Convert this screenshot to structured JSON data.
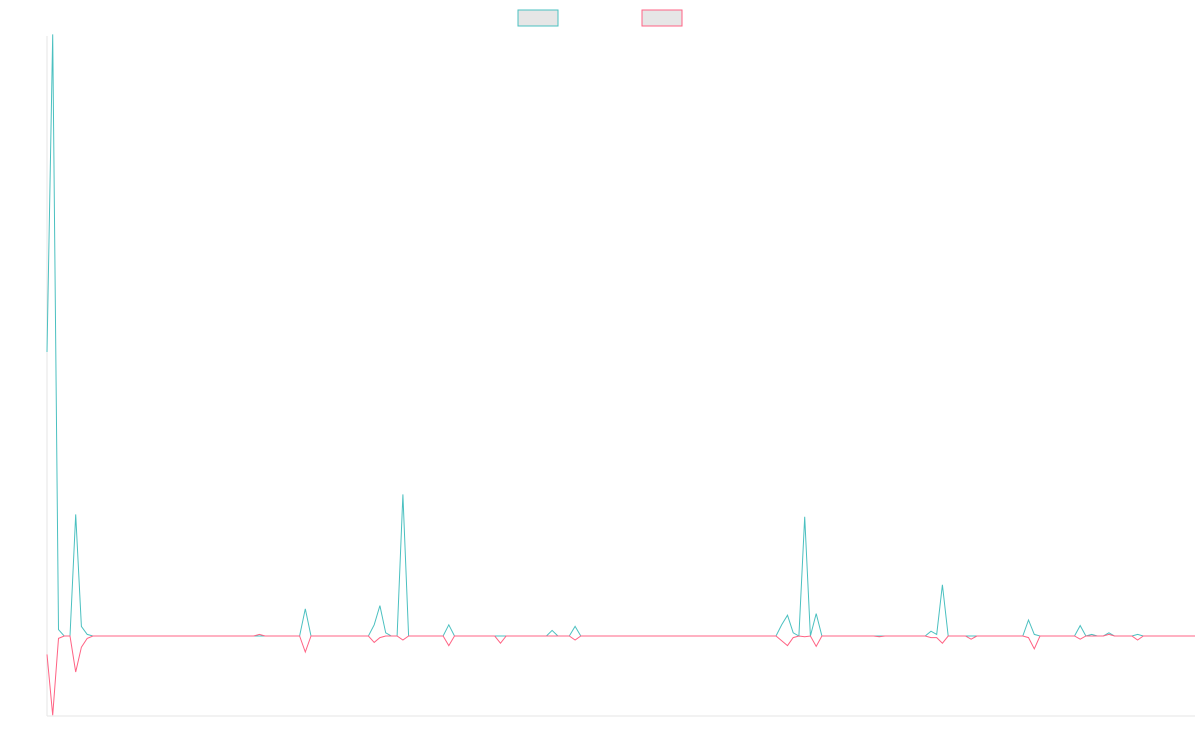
{
  "chart_data": {
    "type": "line",
    "title": "",
    "xlabel": "",
    "ylabel": "",
    "legend": {
      "placement": "top-center",
      "entries": [
        {
          "name": "",
          "color": "#4bc0c0",
          "fill": "#e6e6e6"
        },
        {
          "name": "",
          "color": "#ff6384",
          "fill": "#e6e6e6"
        }
      ]
    },
    "x_range": [
      0,
      200
    ],
    "y_range": [
      -100,
      750
    ],
    "grid": false,
    "series": [
      {
        "name": "",
        "color": "#4bc0c0",
        "points": [
          [
            0,
            355
          ],
          [
            1,
            752
          ],
          [
            2,
            8
          ],
          [
            3,
            0
          ],
          [
            4,
            0
          ],
          [
            5,
            152
          ],
          [
            6,
            12
          ],
          [
            7,
            2
          ],
          [
            8,
            0
          ],
          [
            36,
            0
          ],
          [
            37,
            0
          ],
          [
            38,
            0
          ],
          [
            44,
            0
          ],
          [
            45,
            34
          ],
          [
            46,
            0
          ],
          [
            56,
            0
          ],
          [
            57,
            14
          ],
          [
            58,
            38
          ],
          [
            59,
            4
          ],
          [
            60,
            0
          ],
          [
            61,
            0
          ],
          [
            62,
            177
          ],
          [
            63,
            0
          ],
          [
            69,
            0
          ],
          [
            70,
            14
          ],
          [
            71,
            0
          ],
          [
            78,
            0
          ],
          [
            79,
            0
          ],
          [
            80,
            0
          ],
          [
            87,
            0
          ],
          [
            88,
            7
          ],
          [
            89,
            0
          ],
          [
            91,
            0
          ],
          [
            92,
            12
          ],
          [
            93,
            0
          ],
          [
            127,
            0
          ],
          [
            128,
            14
          ],
          [
            129,
            26
          ],
          [
            130,
            4
          ],
          [
            131,
            0
          ],
          [
            132,
            149
          ],
          [
            133,
            0
          ],
          [
            134,
            28
          ],
          [
            135,
            0
          ],
          [
            144,
            0
          ],
          [
            145,
            0
          ],
          [
            146,
            0
          ],
          [
            153,
            0
          ],
          [
            154,
            6
          ],
          [
            155,
            2
          ],
          [
            156,
            64
          ],
          [
            157,
            0
          ],
          [
            160,
            0
          ],
          [
            161,
            0
          ],
          [
            162,
            0
          ],
          [
            166,
            0
          ],
          [
            167,
            0
          ],
          [
            168,
            0
          ],
          [
            170,
            0
          ],
          [
            171,
            20
          ],
          [
            172,
            2
          ],
          [
            173,
            0
          ],
          [
            179,
            0
          ],
          [
            180,
            13
          ],
          [
            181,
            0
          ],
          [
            182,
            2
          ],
          [
            183,
            0
          ],
          [
            184,
            0
          ],
          [
            185,
            4
          ],
          [
            186,
            0
          ],
          [
            189,
            0
          ],
          [
            190,
            2
          ],
          [
            191,
            0
          ],
          [
            192,
            0
          ],
          [
            193,
            0
          ],
          [
            200,
            0
          ]
        ]
      },
      {
        "name": "",
        "color": "#ff6384",
        "points": [
          [
            0,
            -23
          ],
          [
            1,
            -99
          ],
          [
            2,
            -3
          ],
          [
            3,
            0
          ],
          [
            4,
            0
          ],
          [
            5,
            -45
          ],
          [
            6,
            -14
          ],
          [
            7,
            -3
          ],
          [
            8,
            0
          ],
          [
            36,
            0
          ],
          [
            37,
            2
          ],
          [
            38,
            0
          ],
          [
            44,
            0
          ],
          [
            45,
            -20
          ],
          [
            46,
            0
          ],
          [
            56,
            0
          ],
          [
            57,
            -8
          ],
          [
            58,
            -2
          ],
          [
            59,
            0
          ],
          [
            60,
            0
          ],
          [
            61,
            0
          ],
          [
            62,
            -5
          ],
          [
            63,
            0
          ],
          [
            69,
            0
          ],
          [
            70,
            -12
          ],
          [
            71,
            0
          ],
          [
            78,
            0
          ],
          [
            79,
            -9
          ],
          [
            80,
            0
          ],
          [
            87,
            0
          ],
          [
            88,
            0
          ],
          [
            89,
            0
          ],
          [
            91,
            0
          ],
          [
            92,
            -5
          ],
          [
            93,
            0
          ],
          [
            127,
            0
          ],
          [
            128,
            -6
          ],
          [
            129,
            -12
          ],
          [
            130,
            -2
          ],
          [
            131,
            0
          ],
          [
            132,
            -1
          ],
          [
            133,
            0
          ],
          [
            134,
            -13
          ],
          [
            135,
            0
          ],
          [
            144,
            0
          ],
          [
            145,
            -1
          ],
          [
            146,
            0
          ],
          [
            153,
            0
          ],
          [
            154,
            -2
          ],
          [
            155,
            -2
          ],
          [
            156,
            -9
          ],
          [
            157,
            0
          ],
          [
            160,
            0
          ],
          [
            161,
            -4
          ],
          [
            162,
            0
          ],
          [
            166,
            0
          ],
          [
            167,
            0
          ],
          [
            168,
            0
          ],
          [
            170,
            0
          ],
          [
            171,
            -2
          ],
          [
            172,
            -16
          ],
          [
            173,
            0
          ],
          [
            179,
            0
          ],
          [
            180,
            -4
          ],
          [
            181,
            0
          ],
          [
            182,
            0
          ],
          [
            183,
            0
          ],
          [
            184,
            0
          ],
          [
            185,
            2
          ],
          [
            186,
            0
          ],
          [
            189,
            0
          ],
          [
            190,
            -5
          ],
          [
            191,
            0
          ],
          [
            192,
            0
          ],
          [
            193,
            0
          ],
          [
            200,
            0
          ]
        ]
      }
    ]
  }
}
